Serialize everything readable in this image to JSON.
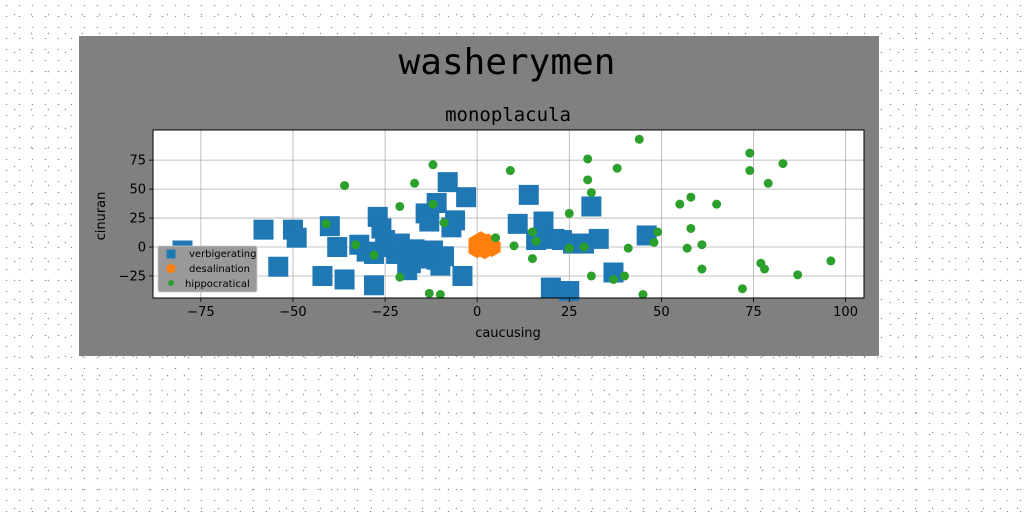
{
  "chart_data": {
    "type": "scatter",
    "title": "washerymen",
    "subtitle": "monoplacula",
    "xlabel": "caucusing",
    "ylabel": "cinuran",
    "xlim": [
      -88,
      105
    ],
    "ylim": [
      -44,
      101
    ],
    "xticks": [
      -75,
      -50,
      -25,
      0,
      25,
      50,
      75,
      100
    ],
    "yticks": [
      -25,
      0,
      25,
      50,
      75
    ],
    "xtick_labels": [
      "−75",
      "−50",
      "−25",
      "0",
      "25",
      "50",
      "75",
      "100"
    ],
    "ytick_labels": [
      "−25",
      "0",
      "25",
      "50",
      "75"
    ],
    "grid": true,
    "legend_position": "lower-left",
    "series": [
      {
        "name": "verbigerating",
        "marker": "square",
        "color": "#1f77b4",
        "points": [
          [
            -80,
            -3
          ],
          [
            -58,
            15
          ],
          [
            -54,
            -17
          ],
          [
            -50,
            15
          ],
          [
            -49,
            8
          ],
          [
            -42,
            -25
          ],
          [
            -40,
            18
          ],
          [
            -38,
            0
          ],
          [
            -36,
            -28
          ],
          [
            -32,
            2
          ],
          [
            -30,
            -4
          ],
          [
            -28,
            -33
          ],
          [
            -28,
            -6
          ],
          [
            -27,
            26
          ],
          [
            -26,
            16
          ],
          [
            -25,
            6
          ],
          [
            -24,
            0
          ],
          [
            -22,
            -6
          ],
          [
            -21,
            3
          ],
          [
            -19,
            -20
          ],
          [
            -18,
            -14
          ],
          [
            -17,
            -2
          ],
          [
            -16,
            -6
          ],
          [
            -15,
            -10
          ],
          [
            -14,
            29
          ],
          [
            -13,
            22
          ],
          [
            -12,
            -3
          ],
          [
            -11,
            38
          ],
          [
            -11,
            -11
          ],
          [
            -10,
            -16
          ],
          [
            -9,
            -8
          ],
          [
            -8,
            56
          ],
          [
            -6,
            23
          ],
          [
            -7,
            17
          ],
          [
            -4,
            -25
          ],
          [
            -3,
            43
          ],
          [
            11,
            20
          ],
          [
            14,
            45
          ],
          [
            16,
            6
          ],
          [
            18,
            22
          ],
          [
            20,
            -35
          ],
          [
            21,
            7
          ],
          [
            23,
            6
          ],
          [
            25,
            -38
          ],
          [
            26,
            3
          ],
          [
            29,
            3
          ],
          [
            31,
            35
          ],
          [
            33,
            7
          ],
          [
            37,
            -22
          ],
          [
            46,
            10
          ]
        ]
      },
      {
        "name": "desalination",
        "marker": "hexagon",
        "color": "#ff7f0e",
        "points": [
          [
            0,
            3
          ],
          [
            1,
            0
          ],
          [
            1,
            5
          ],
          [
            2,
            1
          ],
          [
            3,
            3
          ],
          [
            2,
            -2
          ],
          [
            4,
            0
          ],
          [
            0,
            -1
          ]
        ]
      },
      {
        "name": "hippocratical",
        "marker": "circle",
        "color": "#2ca02c",
        "points": [
          [
            44,
            93
          ],
          [
            74,
            81
          ],
          [
            83,
            72
          ],
          [
            74,
            66
          ],
          [
            79,
            55
          ],
          [
            -36,
            53
          ],
          [
            -17,
            55
          ],
          [
            9,
            66
          ],
          [
            -12,
            71
          ],
          [
            30,
            76
          ],
          [
            38,
            68
          ],
          [
            30,
            58
          ],
          [
            31,
            47
          ],
          [
            58,
            43
          ],
          [
            55,
            37
          ],
          [
            65,
            37
          ],
          [
            -41,
            20
          ],
          [
            -21,
            35
          ],
          [
            -12,
            37
          ],
          [
            -9,
            21
          ],
          [
            -33,
            2
          ],
          [
            -28,
            -7
          ],
          [
            5,
            8
          ],
          [
            10,
            1
          ],
          [
            15,
            -10
          ],
          [
            15,
            13
          ],
          [
            16,
            5
          ],
          [
            25,
            29
          ],
          [
            25,
            -1
          ],
          [
            29,
            0
          ],
          [
            58,
            16
          ],
          [
            57,
            -1
          ],
          [
            61,
            2
          ],
          [
            48,
            4
          ],
          [
            49,
            13
          ],
          [
            61,
            -19
          ],
          [
            77,
            -14
          ],
          [
            78,
            -19
          ],
          [
            87,
            -24
          ],
          [
            96,
            -12
          ],
          [
            31,
            -25
          ],
          [
            40,
            -25
          ],
          [
            -21,
            -26
          ],
          [
            37,
            -28
          ],
          [
            -13,
            -40
          ],
          [
            -10,
            -41
          ],
          [
            45,
            -41
          ],
          [
            72,
            -36
          ],
          [
            41,
            -1
          ]
        ]
      }
    ]
  }
}
